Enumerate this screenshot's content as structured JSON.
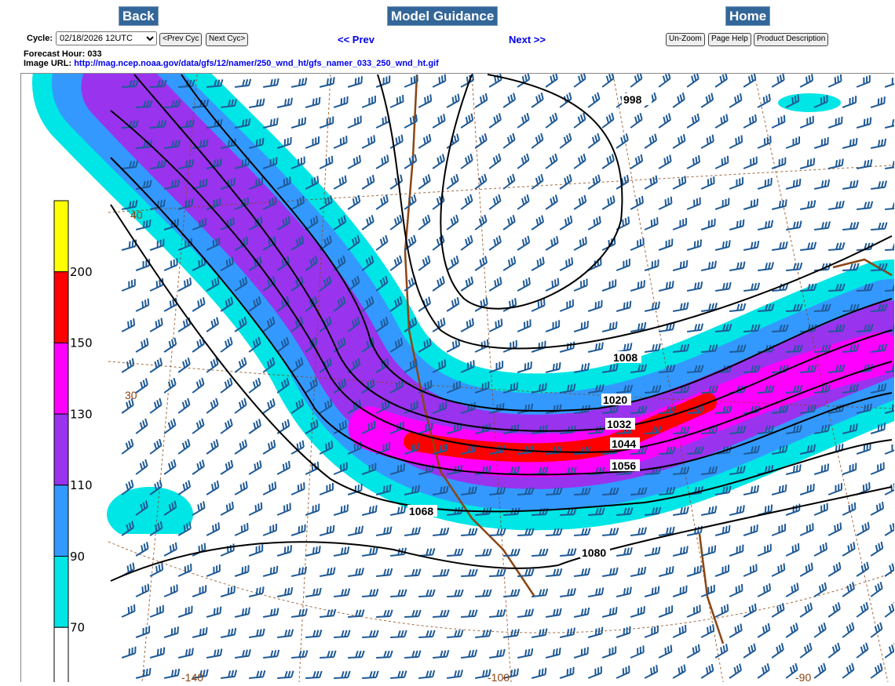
{
  "nav": {
    "back": "Back",
    "model_guidance": "Model Guidance",
    "home": "Home"
  },
  "cycle": {
    "label": "Cycle:",
    "value": "02/18/2026 12UTC",
    "prev": "<Prev Cyc",
    "next": "Next Cyc>"
  },
  "paging": {
    "prev": "<< Prev",
    "next": "Next >>"
  },
  "tools": {
    "unzoom": "Un-Zoom",
    "help": "Page Help",
    "desc": "Product Description"
  },
  "forecast": {
    "label": "Forecast Hour:",
    "value": "033"
  },
  "image_url": {
    "label": "Image URL:",
    "value": "http://mag.ncep.noaa.gov/data/gfs/12/namer/250_wnd_ht/gfs_namer_033_250_wnd_ht.gif"
  },
  "colorbar": {
    "labels": [
      "200",
      "150",
      "130",
      "110",
      "90",
      "70"
    ],
    "colors": [
      "#ffff00",
      "#ff0000",
      "#ff00ff",
      "#9933ee",
      "#3399ff",
      "#00e5e5",
      "#ffffff"
    ]
  },
  "map": {
    "contours": [
      "998",
      "1008",
      "1020",
      "1032",
      "1044",
      "1056",
      "1068",
      "1080"
    ],
    "lat_labels": [
      "40",
      "30"
    ],
    "lon_labels": [
      "-140",
      "-100",
      "-90"
    ]
  }
}
